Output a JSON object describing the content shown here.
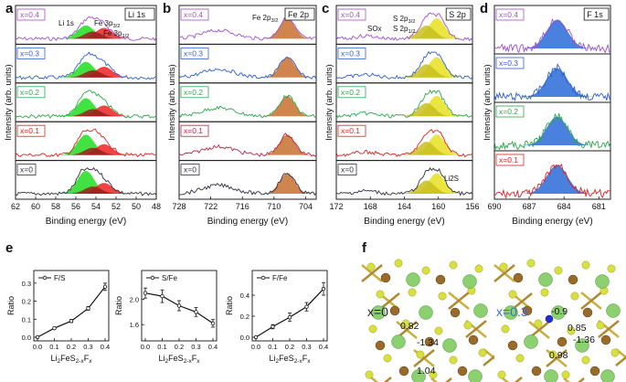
{
  "figure": {
    "panel_labels": [
      "a",
      "b",
      "c",
      "d",
      "e",
      "f"
    ],
    "xlabel": "Binding energy (eV)",
    "ylabel": "Intensity (arb. units)"
  },
  "xps_panels": [
    {
      "id": "a",
      "corner_label": "Li 1s",
      "x_ticks": [
        "62",
        "60",
        "58",
        "56",
        "54",
        "52",
        "50",
        "48"
      ],
      "x_range": [
        62,
        48
      ],
      "rows": [
        {
          "label": "x=0.4",
          "color": "#a050d0"
        },
        {
          "label": "x=0.3",
          "color": "#2f5fd0"
        },
        {
          "label": "x=0.2",
          "color": "#2aa84a"
        },
        {
          "label": "x=0.1",
          "color": "#e02020"
        },
        {
          "label": "x=0",
          "color": "#303040"
        }
      ],
      "peak_labels": [
        "Li 1s",
        "Fe 3p3/2",
        "Fe 3p1/2"
      ],
      "components": [
        {
          "name": "Li 1s",
          "center": 55.0,
          "color": "#22dd22"
        },
        {
          "name": "Fe 3p3/2",
          "center": 53.2,
          "color": "#ee2222"
        },
        {
          "name": "Fe 3p1/2",
          "center": 54.3,
          "color": "#9a2020"
        }
      ]
    },
    {
      "id": "b",
      "corner_label": "Fe 2p",
      "x_ticks": [
        "728",
        "722",
        "716",
        "710",
        "704"
      ],
      "x_range": [
        728,
        702
      ],
      "rows": [
        {
          "label": "x=0.4",
          "color": "#a050d0"
        },
        {
          "label": "x=0.3",
          "color": "#2f5fd0"
        },
        {
          "label": "x=0.2",
          "color": "#2aa84a"
        },
        {
          "label": "x=0.1",
          "color": "#c02040"
        },
        {
          "label": "x=0",
          "color": "#303040"
        }
      ],
      "peak_labels": [
        "Fe 2p3/2"
      ],
      "components": [
        {
          "name": "Fe 2p3/2",
          "center": 707.5,
          "color": "#c87030"
        }
      ]
    },
    {
      "id": "c",
      "corner_label": "S 2p",
      "x_ticks": [
        "172",
        "168",
        "164",
        "160",
        "156"
      ],
      "x_range": [
        172,
        156
      ],
      "rows": [
        {
          "label": "x=0.4",
          "color": "#a050d0"
        },
        {
          "label": "x=0.3",
          "color": "#2f5fd0"
        },
        {
          "label": "x=0.2",
          "color": "#2aa84a"
        },
        {
          "label": "x=0.1",
          "color": "#e02020"
        },
        {
          "label": "x=0",
          "color": "#303040"
        }
      ],
      "peak_labels": [
        "SOx",
        "S 2p3/2",
        "S 2p1/2",
        "Li2S"
      ],
      "components": [
        {
          "name": "S 2p3/2",
          "center": 160.2,
          "color": "#e8e020"
        },
        {
          "name": "S 2p1/2",
          "center": 161.4,
          "color": "#c8c020"
        }
      ]
    },
    {
      "id": "d",
      "corner_label": "F 1s",
      "x_ticks": [
        "690",
        "687",
        "684",
        "681"
      ],
      "x_range": [
        690,
        680
      ],
      "rows": [
        {
          "label": "x=0.4",
          "color": "#a050d0"
        },
        {
          "label": "x=0.3",
          "color": "#2f5fd0"
        },
        {
          "label": "x=0.2",
          "color": "#2aa84a"
        },
        {
          "label": "x=0.1",
          "color": "#e02020"
        }
      ],
      "peak_labels": [],
      "components": [
        {
          "name": "F 1s",
          "center": 684.6,
          "color": "#2a6ad8"
        }
      ]
    }
  ],
  "chart_data": [
    {
      "type": "line",
      "panel": "e",
      "title": "",
      "xlabel": "Li2FeS2-xFx",
      "ylabel": "Ratio",
      "legend": "F/S",
      "x": [
        0,
        0.1,
        0.2,
        0.3,
        0.4
      ],
      "y": [
        0.0,
        0.05,
        0.09,
        0.16,
        0.28
      ],
      "yerr": [
        0.0,
        0.005,
        0.008,
        0.01,
        0.02
      ],
      "xlim": [
        0,
        0.4
      ],
      "ylim": [
        0,
        0.35
      ],
      "x_ticks": [
        "0.0",
        "0.1",
        "0.2",
        "0.3",
        "0.4"
      ],
      "y_ticks": [
        "0.0",
        "0.1",
        "0.2",
        "0.3"
      ]
    },
    {
      "type": "line",
      "panel": "e",
      "title": "",
      "xlabel": "Li2FeS2-xFx",
      "ylabel": "Ratio",
      "legend": "S/Fe",
      "x": [
        0,
        0.1,
        0.2,
        0.3,
        0.4
      ],
      "y": [
        2.1,
        2.05,
        1.9,
        1.8,
        1.62
      ],
      "yerr": [
        0.08,
        0.1,
        0.08,
        0.07,
        0.06
      ],
      "xlim": [
        0,
        0.4
      ],
      "ylim": [
        1.4,
        2.4
      ],
      "x_ticks": [
        "0.0",
        "0.1",
        "0.2",
        "0.3",
        "0.4"
      ],
      "y_ticks": [
        "1.6",
        "2.0"
      ]
    },
    {
      "type": "line",
      "panel": "e",
      "title": "",
      "xlabel": "Li2FeS2-xFx",
      "ylabel": "Ratio",
      "legend": "F/Fe",
      "x": [
        0,
        0.1,
        0.2,
        0.3,
        0.4
      ],
      "y": [
        0.0,
        0.1,
        0.19,
        0.29,
        0.46
      ],
      "yerr": [
        0.0,
        0.02,
        0.04,
        0.04,
        0.06
      ],
      "xlim": [
        0,
        0.4
      ],
      "ylim": [
        0,
        0.6
      ],
      "x_ticks": [
        "0.0",
        "0.1",
        "0.2",
        "0.3",
        "0.4"
      ],
      "y_ticks": [
        "0.0",
        "0.2",
        "0.4"
      ]
    }
  ],
  "structures": [
    {
      "label": "x=0",
      "label_color": "#222222",
      "values": [
        "0.82",
        "-1.34",
        "1.04"
      ]
    },
    {
      "label": "x=0.3",
      "label_color": "#3a6ad8",
      "values": [
        "-0.9",
        "0.85",
        "-1.36",
        "0.98"
      ]
    }
  ],
  "colors": {
    "frame": "#1e1e1e",
    "fe_atom": "#9a6a2a",
    "s_atom": "#d8e040",
    "li_atom": "#8cd070",
    "f_atom": "#2030d0"
  }
}
